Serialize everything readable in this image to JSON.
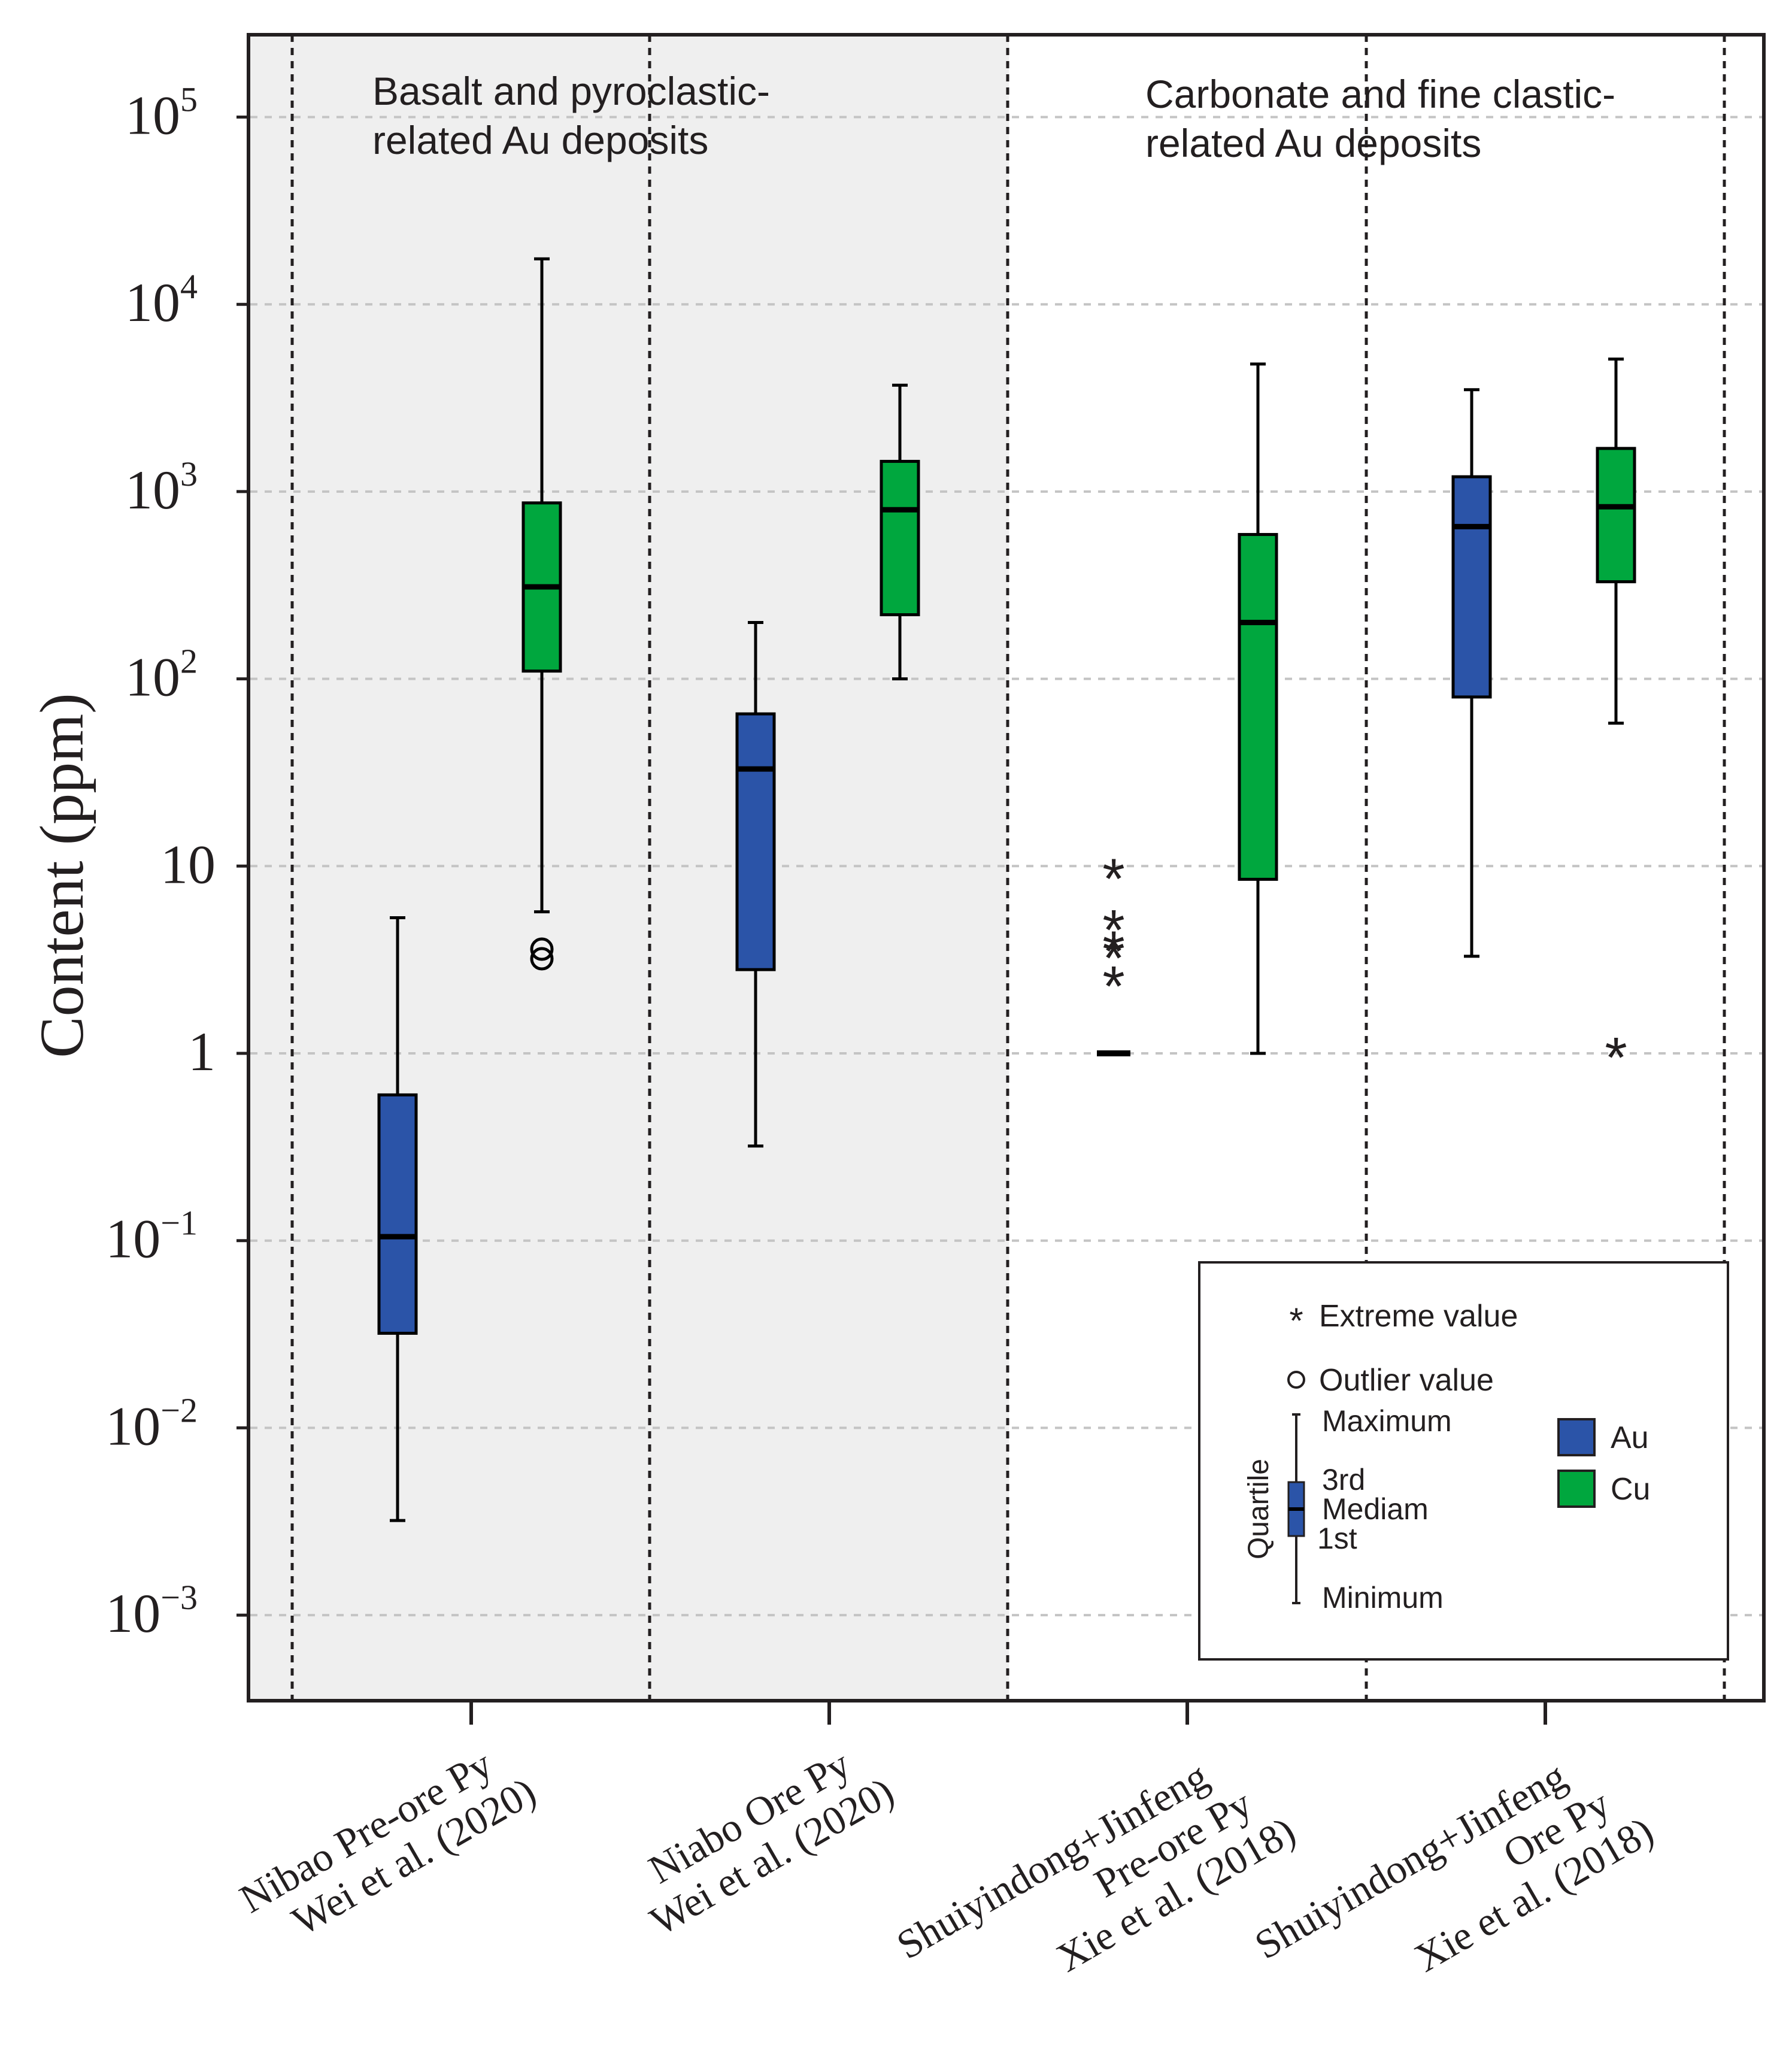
{
  "chart_data": {
    "type": "box",
    "ylabel": "Content (ppm)",
    "yscale": "log",
    "ylim": [
      0.0003,
      300000
    ],
    "y_ticks": [
      {
        "value": 0.001,
        "base": "10",
        "exp": "−3"
      },
      {
        "value": 0.01,
        "base": "10",
        "exp": "−2"
      },
      {
        "value": 0.1,
        "base": "10",
        "exp": "−1"
      },
      {
        "value": 1,
        "base": "1",
        "exp": ""
      },
      {
        "value": 10,
        "base": "10",
        "exp": ""
      },
      {
        "value": 100,
        "base": "10",
        "exp": "2"
      },
      {
        "value": 1000,
        "base": "10",
        "exp": "3"
      },
      {
        "value": 10000,
        "base": "10",
        "exp": "4"
      },
      {
        "value": 100000,
        "base": "10",
        "exp": "5"
      }
    ],
    "grid": "horizontal dashed",
    "regions": [
      {
        "line1": "Basalt and pyroclastic-",
        "line2": "related Au deposits",
        "shaded": true
      },
      {
        "line1": "Carbonate and fine clastic-",
        "line2": "related Au deposits",
        "shaded": false
      }
    ],
    "groups": [
      {
        "lines": [
          "Nibao Pre-ore Py",
          "Wei et al. (2020)"
        ]
      },
      {
        "lines": [
          "Niabo Ore Py",
          "Wei et al. (2020)"
        ]
      },
      {
        "lines": [
          "Shuiyindong+Jinfeng",
          "Pre-ore Py",
          "Xie et al. (2018)"
        ]
      },
      {
        "lines": [
          "Shuiyindong+Jinfeng",
          "Ore Py",
          "Xie et al. (2018)"
        ]
      }
    ],
    "series": [
      {
        "name": "Au",
        "color": "#2b54a8",
        "boxes": [
          {
            "group": 0,
            "min": 0.0032,
            "q1": 0.032,
            "median": 0.105,
            "q3": 0.6,
            "max": 5.3,
            "outliers": [],
            "extremes": []
          },
          {
            "group": 1,
            "min": 0.32,
            "q1": 2.8,
            "median": 33,
            "q3": 65,
            "max": 200,
            "outliers": [],
            "extremes": []
          },
          {
            "group": 2,
            "min": 1.0,
            "q1": 1.0,
            "median": 1.0,
            "q3": 1.0,
            "max": 1.0,
            "outliers": [],
            "extremes": [
              9.0,
              4.8,
              3.7,
              3.4,
              2.4
            ]
          },
          {
            "group": 3,
            "min": 3.3,
            "q1": 80,
            "median": 650,
            "q3": 1200,
            "max": 3500,
            "outliers": [],
            "extremes": []
          }
        ]
      },
      {
        "name": "Cu",
        "color": "#00a73e",
        "boxes": [
          {
            "group": 0,
            "min": 5.7,
            "q1": 110,
            "median": 310,
            "q3": 870,
            "max": 17500,
            "outliers": [
              3.6,
              3.2
            ],
            "extremes": []
          },
          {
            "group": 1,
            "min": 100,
            "q1": 220,
            "median": 800,
            "q3": 1450,
            "max": 3700,
            "outliers": [],
            "extremes": []
          },
          {
            "group": 2,
            "min": 1.0,
            "q1": 8.5,
            "median": 200,
            "q3": 590,
            "max": 4800,
            "outliers": [],
            "extremes": []
          },
          {
            "group": 3,
            "min": 58,
            "q1": 330,
            "median": 830,
            "q3": 1700,
            "max": 5100,
            "outliers": [],
            "extremes": [
              1.0
            ]
          }
        ]
      }
    ],
    "legend": {
      "extreme": "Extreme value",
      "outlier": "Outlier value",
      "maximum": "Maximum",
      "third": "3rd",
      "median": "Mediam",
      "first": "1st",
      "minimum": "Minimum",
      "quartile": "Quartile",
      "au": "Au",
      "cu": "Cu"
    }
  }
}
